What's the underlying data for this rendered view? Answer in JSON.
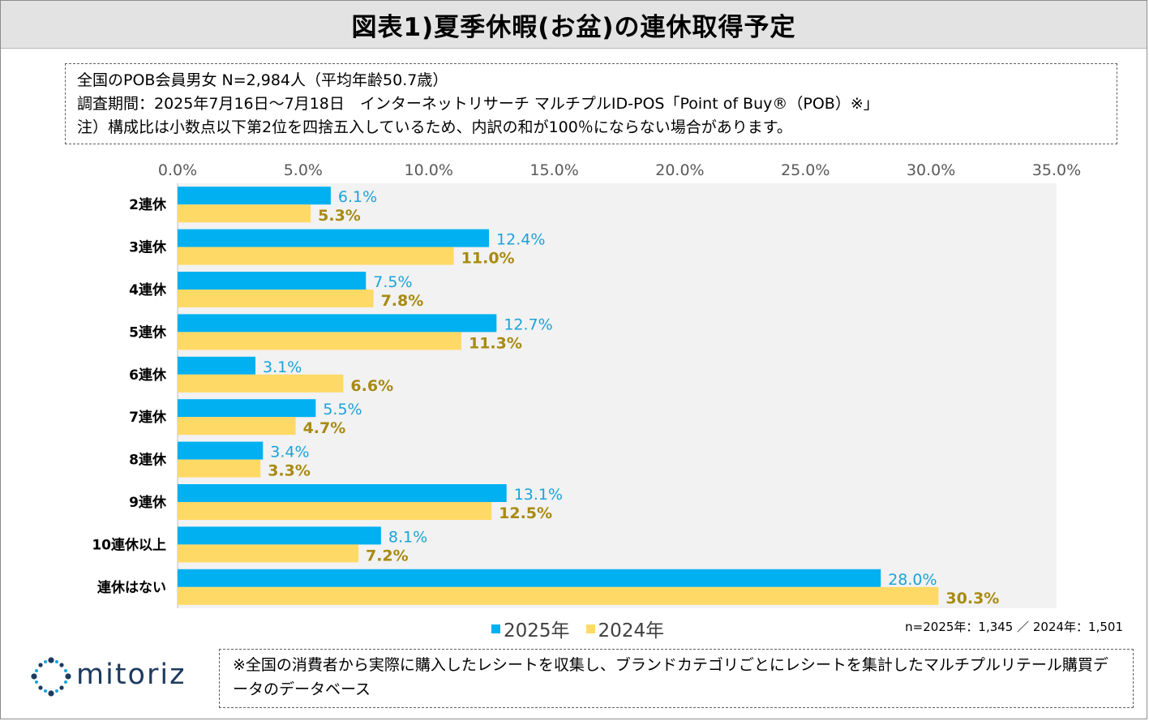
{
  "title": "図表1)夏季休暇(お盆)の連休取得予定",
  "info_lines": [
    "全国のPOB会員男女 N=2,984人（平均年齢50.7歳）",
    "調査期間：2025年7月16日～7月18日　インターネットリサーチ マルチプルID-POS「Point of Buy®（POB）※」",
    "注）構成比は小数点以下第2位を四捨五入しているため、内訳の和が100％にならない場合があります。"
  ],
  "sample_note": "n=2025年：1,345 ／ 2024年：1,501",
  "logo_text": "mitoriz",
  "footnote": "※全国の消費者から実際に購入したレシートを収集し、ブランドカテゴリごとにレシートを集計したマルチプルリテール購買データのデータベース",
  "colors": {
    "series_2025": "#00b0f0",
    "series_2024": "#ffd966",
    "plot_bg": "#f2f2f2",
    "logo": "#1c3a5e"
  },
  "chart_data": {
    "type": "bar",
    "orientation": "horizontal",
    "categories": [
      "2連休",
      "3連休",
      "4連休",
      "5連休",
      "6連休",
      "7連休",
      "8連休",
      "9連休",
      "10連休以上",
      "連休はない"
    ],
    "series": [
      {
        "name": "2025年",
        "values": [
          6.1,
          12.4,
          7.5,
          12.7,
          3.1,
          5.5,
          3.4,
          13.1,
          8.1,
          28.0
        ]
      },
      {
        "name": "2024年",
        "values": [
          5.3,
          11.0,
          7.8,
          11.3,
          6.6,
          4.7,
          3.3,
          12.5,
          7.2,
          30.3
        ]
      }
    ],
    "value_unit": "%",
    "xlim": [
      0,
      35
    ],
    "x_ticks": [
      0,
      5,
      10,
      15,
      20,
      25,
      30,
      35
    ],
    "x_tick_labels": [
      "0.0%",
      "5.0%",
      "10.0%",
      "15.0%",
      "20.0%",
      "25.0%",
      "30.0%",
      "35.0%"
    ],
    "axis_position": "top",
    "legend_position": "bottom-center",
    "grid": false
  }
}
